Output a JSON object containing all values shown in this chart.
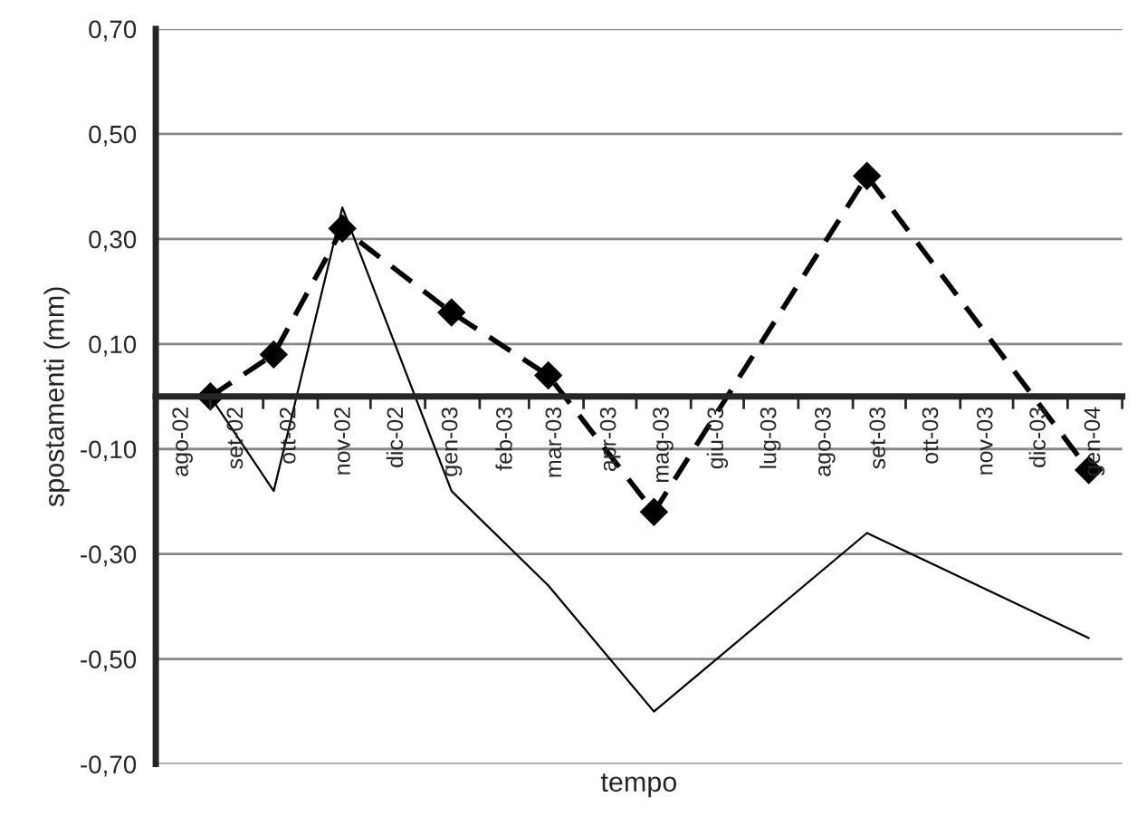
{
  "chart_data": {
    "type": "line",
    "xlabel": "tempo",
    "ylabel": "spostamenti (mm)",
    "x": [
      "2002-09-01",
      "2002-10-07",
      "2002-11-15",
      "2003-01-16",
      "2003-03-12",
      "2003-05-11",
      "2003-09-09",
      "2004-01-13"
    ],
    "series": [
      {
        "color": "#000000",
        "line_style": "dashed",
        "marker": "diamond",
        "values": [
          0.0,
          0.08,
          0.32,
          0.16,
          0.04,
          -0.22,
          0.42,
          -0.14
        ]
      },
      {
        "color": "#000000",
        "line_style": "solid",
        "marker": "none",
        "values": [
          0.0,
          -0.18,
          0.36,
          -0.18,
          -0.36,
          -0.6,
          -0.26,
          -0.46
        ]
      }
    ],
    "xlim": [
      "2002-08-01",
      "2004-02-01"
    ],
    "xticks": [
      {
        "value": "2002-08-01",
        "label": null
      },
      {
        "value": "2002-09-01",
        "label": null
      },
      {
        "value": "2002-10-01",
        "label": null
      },
      {
        "value": "2002-11-01",
        "label": null
      },
      {
        "value": "2002-12-01",
        "label": null
      },
      {
        "value": "2003-01-01",
        "label": null
      },
      {
        "value": "2003-02-01",
        "label": null
      },
      {
        "value": "2003-03-01",
        "label": null
      },
      {
        "value": "2003-04-01",
        "label": null
      },
      {
        "value": "2003-05-01",
        "label": null
      },
      {
        "value": "2003-06-01",
        "label": null
      },
      {
        "value": "2003-07-01",
        "label": null
      },
      {
        "value": "2003-08-01",
        "label": null
      },
      {
        "value": "2003-09-01",
        "label": null
      },
      {
        "value": "2003-10-01",
        "label": null
      },
      {
        "value": "2003-11-01",
        "label": null
      },
      {
        "value": "2003-12-01",
        "label": null
      },
      {
        "value": "2004-01-01",
        "label": null
      },
      {
        "value": "2004-02-01",
        "label": null
      },
      {
        "value": "2002-08-16",
        "label": "ago-02"
      },
      {
        "value": "2002-09-16",
        "label": "set-02"
      },
      {
        "value": "2002-10-16",
        "label": "ott-02"
      },
      {
        "value": "2002-11-16",
        "label": "nov-02"
      },
      {
        "value": "2002-12-16",
        "label": "dic-02"
      },
      {
        "value": "2003-01-16",
        "label": "gen-03"
      },
      {
        "value": "2003-02-16",
        "label": "feb-03"
      },
      {
        "value": "2003-03-16",
        "label": "mar-03"
      },
      {
        "value": "2003-04-16",
        "label": "apr-03"
      },
      {
        "value": "2003-05-16",
        "label": "mag-03"
      },
      {
        "value": "2003-06-16",
        "label": "giu-03"
      },
      {
        "value": "2003-07-16",
        "label": "lug-03"
      },
      {
        "value": "2003-08-16",
        "label": "ago-03"
      },
      {
        "value": "2003-09-16",
        "label": "set-03"
      },
      {
        "value": "2003-10-16",
        "label": "ott-03"
      },
      {
        "value": "2003-11-16",
        "label": "nov-03"
      },
      {
        "value": "2003-12-16",
        "label": "dic-03"
      },
      {
        "value": "2004-01-16",
        "label": "gen-04"
      }
    ],
    "ylim": [
      -0.7,
      0.7
    ],
    "yticks": [
      {
        "value": -0.7,
        "label": "-0,70"
      },
      {
        "value": -0.5,
        "label": "-0,50"
      },
      {
        "value": -0.3,
        "label": "-0,30"
      },
      {
        "value": -0.1,
        "label": "-0,10"
      },
      {
        "value": 0.1,
        "label": "0,10"
      },
      {
        "value": 0.3,
        "label": "0,30"
      },
      {
        "value": 0.5,
        "label": "0,50"
      },
      {
        "value": 0.7,
        "label": "0,70"
      }
    ],
    "grid": "y",
    "legend": false
  }
}
